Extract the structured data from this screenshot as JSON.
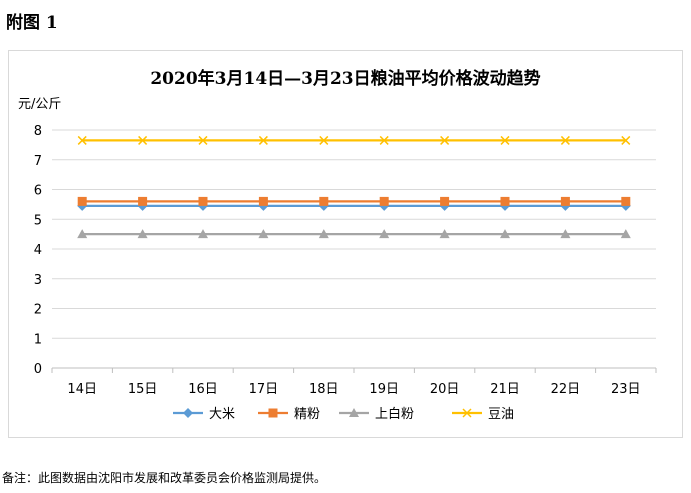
{
  "page": {
    "heading": "附图 1",
    "footnote": "备注：此图数据由沈阳市发展和改革委员会价格监测局提供。"
  },
  "chart_data": {
    "type": "line",
    "title": "2020年3月14日—3月23日粮油平均价格波动趋势",
    "ylabel": "元/公斤",
    "xlabel": "",
    "ylim": [
      0,
      8
    ],
    "yticks": [
      0,
      1,
      2,
      3,
      4,
      5,
      6,
      7,
      8
    ],
    "grid": true,
    "legend": "bottom",
    "categories": [
      "14日",
      "15日",
      "16日",
      "17日",
      "18日",
      "19日",
      "20日",
      "21日",
      "22日",
      "23日"
    ],
    "series": [
      {
        "name": "大米",
        "marker": "diamond",
        "color": "#5b9bd5",
        "values": [
          5.45,
          5.45,
          5.45,
          5.45,
          5.45,
          5.45,
          5.45,
          5.45,
          5.45,
          5.45
        ]
      },
      {
        "name": "精粉",
        "marker": "square",
        "color": "#ed7d31",
        "values": [
          5.6,
          5.6,
          5.6,
          5.6,
          5.6,
          5.6,
          5.6,
          5.6,
          5.6,
          5.6
        ]
      },
      {
        "name": "上白粉",
        "marker": "triangle",
        "color": "#a5a5a5",
        "values": [
          4.5,
          4.5,
          4.5,
          4.5,
          4.5,
          4.5,
          4.5,
          4.5,
          4.5,
          4.5
        ]
      },
      {
        "name": "豆油",
        "marker": "x",
        "color": "#ffc000",
        "values": [
          7.65,
          7.65,
          7.65,
          7.65,
          7.65,
          7.65,
          7.65,
          7.65,
          7.65,
          7.65
        ]
      }
    ]
  }
}
